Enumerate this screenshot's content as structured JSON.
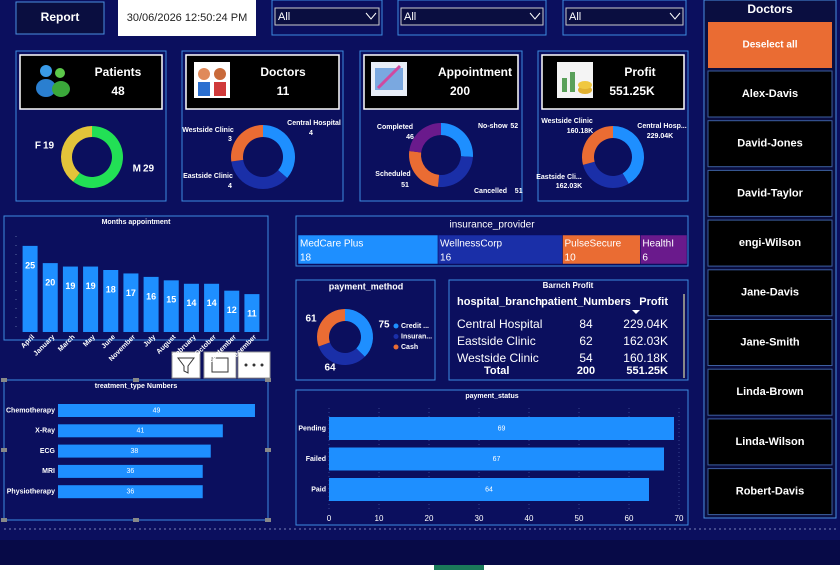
{
  "toolbar": {
    "button": "Report",
    "datetime": "30/06/2026 12:50:24 PM",
    "filters": [
      "All",
      "All",
      "All"
    ]
  },
  "slicer": {
    "title": "Doctors",
    "deselect": "Deselect all",
    "items": [
      "Alex-Davis",
      "David-Jones",
      "David-Taylor",
      "engi-Wilson",
      "Jane-Davis",
      "Jane-Smith",
      "Linda-Brown",
      "Linda-Wilson",
      "Robert-Davis"
    ]
  },
  "cards": [
    {
      "label": "Patients",
      "value": "48"
    },
    {
      "label": "Doctors",
      "value": "11"
    },
    {
      "label": "Appointment",
      "value": "200"
    },
    {
      "label": "Profit",
      "value": "551.25K"
    }
  ],
  "table": {
    "title": "Barnch Profit",
    "columns": [
      "hospital_branch",
      "patient_Numbers",
      "Profit"
    ],
    "rows": [
      [
        "Central Hospital",
        "84",
        "229.04K"
      ],
      [
        "Eastside Clinic",
        "62",
        "162.03K"
      ],
      [
        "Westside Clinic",
        "54",
        "160.18K"
      ]
    ],
    "total": [
      "Total",
      "200",
      "551.25K"
    ]
  },
  "chart_data": [
    {
      "type": "pie",
      "categories": [
        "M",
        "F"
      ],
      "values": [
        29,
        19
      ],
      "colors": [
        "#22e055",
        "#e3c43a"
      ]
    },
    {
      "type": "pie",
      "categories": [
        "Central Hospital",
        "Eastside Clinic",
        "Westside Clinic"
      ],
      "values": [
        4,
        4,
        3
      ],
      "colors": [
        "#1e8fff",
        "#1a2fa8",
        "#ea6c33"
      ]
    },
    {
      "type": "pie",
      "categories": [
        "No-show",
        "Cancelled",
        "Scheduled",
        "Completed"
      ],
      "values": [
        52,
        51,
        51,
        46
      ],
      "colors": [
        "#1e8fff",
        "#1a2fa8",
        "#ea6c33",
        "#6a1a8c"
      ]
    },
    {
      "type": "pie",
      "categories": [
        "Central Hosp...",
        "Eastside Cli...",
        "Westside Clinic"
      ],
      "values": [
        229040,
        162030,
        160180
      ],
      "value_labels": [
        "229.04K",
        "162.03K",
        "160.18K"
      ],
      "colors": [
        "#1e8fff",
        "#1a2fa8",
        "#ea6c33"
      ]
    },
    {
      "type": "bar",
      "title": "Months appointment",
      "categories": [
        "April",
        "January",
        "March",
        "May",
        "June",
        "November",
        "July",
        "August",
        "February",
        "October",
        "September",
        "December"
      ],
      "values": [
        25,
        20,
        19,
        19,
        18,
        17,
        16,
        15,
        14,
        14,
        12,
        11
      ],
      "color": "#1e8fff",
      "ylim": [
        0,
        27
      ]
    },
    {
      "type": "treemap",
      "title": "insurance_provider",
      "categories": [
        "MedCare Plus",
        "WellnessCorp",
        "PulseSecure",
        "HealthI"
      ],
      "values": [
        18,
        16,
        10,
        6
      ],
      "colors": [
        "#1e8fff",
        "#1a2fa8",
        "#ea6c33",
        "#6a1a8c"
      ]
    },
    {
      "type": "pie",
      "title": "payment_method",
      "categories": [
        "Credit ...",
        "Insuran...",
        "Cash"
      ],
      "values": [
        75,
        64,
        61
      ],
      "colors": [
        "#1e8fff",
        "#1a2fa8",
        "#ea6c33"
      ],
      "legend": "right"
    },
    {
      "type": "hbar",
      "title": "treatment_type Numbers",
      "categories": [
        "Chemotherapy",
        "X-Ray",
        "ECG",
        "MRI",
        "Physiotherapy"
      ],
      "values": [
        49,
        41,
        38,
        36,
        36
      ],
      "color": "#1e8fff",
      "xlim": [
        0,
        50
      ]
    },
    {
      "type": "hbar",
      "title": "payment_status",
      "categories": [
        "Pending",
        "Failed",
        "Paid"
      ],
      "values": [
        69,
        67,
        64
      ],
      "color": "#1e8fff",
      "xlim": [
        0,
        70
      ],
      "xticks": [
        0,
        10,
        20,
        30,
        40,
        50,
        60,
        70
      ],
      "grid": true
    }
  ]
}
